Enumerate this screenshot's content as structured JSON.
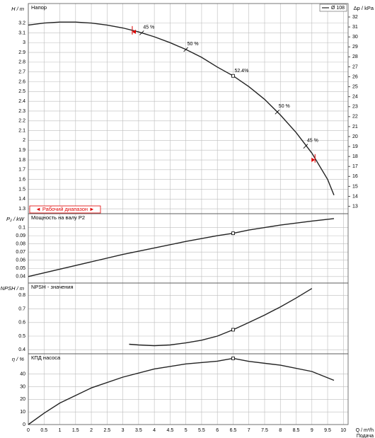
{
  "chart_data": [
    {
      "type": "line",
      "title": "Напор",
      "ylabel": "H / m",
      "y2label": "Δp / kPa",
      "ylim": [
        1.25,
        3.4
      ],
      "yticks": [
        1.3,
        1.4,
        1.5,
        1.6,
        1.7,
        1.8,
        1.9,
        2,
        2.1,
        2.2,
        2.3,
        2.4,
        2.5,
        2.6,
        2.7,
        2.8,
        2.9,
        3,
        3.1,
        3.2
      ],
      "y2lim": [
        12.26,
        33.35
      ],
      "y2ticks": [
        13,
        14,
        15,
        16,
        17,
        18,
        19,
        20,
        21,
        22,
        23,
        24,
        25,
        26,
        27,
        28,
        29,
        30,
        31,
        32
      ],
      "series": [
        {
          "name": "Ø 108",
          "color": "#222222",
          "x": [
            0,
            0.5,
            1,
            1.5,
            2,
            2.5,
            3,
            3.5,
            4,
            4.5,
            5,
            5.5,
            6,
            6.5,
            7,
            7.5,
            8,
            8.5,
            9,
            9.5,
            9.7
          ],
          "values": [
            3.18,
            3.2,
            3.21,
            3.21,
            3.2,
            3.18,
            3.15,
            3.11,
            3.06,
            3.0,
            2.93,
            2.85,
            2.75,
            2.66,
            2.55,
            2.42,
            2.26,
            2.08,
            1.87,
            1.6,
            1.44
          ]
        }
      ],
      "duty_point": {
        "x": 6.5,
        "y": 2.66,
        "label": "52.4%"
      },
      "efficiency_marks": [
        {
          "x": 3.6,
          "y": 3.1,
          "label": "45 %"
        },
        {
          "x": 5,
          "y": 2.93,
          "label": "50 %"
        },
        {
          "x": 7.9,
          "y": 2.29,
          "label": "50 %"
        },
        {
          "x": 8.8,
          "y": 1.94,
          "label": "45 %"
        }
      ],
      "operating_range": [
        3.3,
        9.1
      ],
      "operating_range_label": "◄ Рабочий диапазон ►",
      "legend": "upper right"
    },
    {
      "type": "line",
      "title": "Мощность на валу P2",
      "ylabel": "P₂ / kW",
      "ylim": [
        0.032,
        0.117
      ],
      "yticks": [
        0.04,
        0.05,
        0.06,
        0.07,
        0.08,
        0.09,
        0.1
      ],
      "series": [
        {
          "name": "Ø 108",
          "color": "#222222",
          "x": [
            0,
            1,
            2,
            3,
            4,
            5,
            6,
            6.5,
            7,
            8,
            9,
            9.7
          ],
          "values": [
            0.04,
            0.049,
            0.058,
            0.067,
            0.075,
            0.083,
            0.09,
            0.093,
            0.097,
            0.103,
            0.108,
            0.111
          ]
        }
      ],
      "duty_point": {
        "x": 6.5,
        "y": 0.093
      }
    },
    {
      "type": "line",
      "title": "NPSH - значения",
      "ylabel": "NPSH / m",
      "ylim": [
        0.37,
        0.89
      ],
      "yticks": [
        0.4,
        0.5,
        0.6,
        0.7,
        0.8
      ],
      "series": [
        {
          "name": "Ø 108",
          "color": "#222222",
          "x": [
            3.2,
            3.5,
            4,
            4.5,
            5,
            5.5,
            6,
            6.5,
            7,
            7.5,
            8,
            8.5,
            9
          ],
          "values": [
            0.44,
            0.435,
            0.43,
            0.435,
            0.45,
            0.47,
            0.5,
            0.547,
            0.6,
            0.655,
            0.715,
            0.78,
            0.85
          ]
        }
      ],
      "duty_point": {
        "x": 6.5,
        "y": 0.547
      }
    },
    {
      "type": "line",
      "title": "КПД насоса",
      "ylabel": "η / %",
      "ylim": [
        0,
        56
      ],
      "yticks": [
        0,
        10,
        20,
        30,
        40
      ],
      "xlim": [
        0,
        10.15
      ],
      "xticks": [
        0,
        0.5,
        1,
        1.5,
        2,
        2.5,
        3,
        3.5,
        4,
        4.5,
        5,
        5.5,
        6,
        6.5,
        7,
        7.5,
        8,
        8.5,
        9,
        9.5,
        10
      ],
      "xlabel": "Q / m³/h",
      "x_caption": "Подача",
      "series": [
        {
          "name": "Ø 108",
          "color": "#222222",
          "x": [
            0,
            0.5,
            1,
            2,
            3,
            4,
            5,
            6,
            6.5,
            7,
            8,
            9,
            9.7
          ],
          "values": [
            0,
            9,
            17,
            29,
            37.5,
            44,
            48,
            50.2,
            52.4,
            50,
            47,
            42,
            35
          ]
        }
      ],
      "duty_point": {
        "x": 6.5,
        "y": 52.4
      }
    }
  ]
}
